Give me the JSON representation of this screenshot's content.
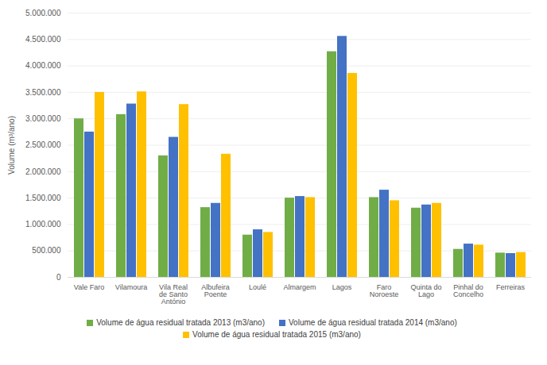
{
  "chart_data": {
    "type": "bar",
    "ylabel": "Volume (m³/ano)",
    "categories": [
      "Vale Faro",
      "Vilamoura",
      "Vila Real de Santo António",
      "Albufeira Poente",
      "Loulé",
      "Almargem",
      "Lagos",
      "Faro Noroeste",
      "Quinta do Lago",
      "Pinhal do Concelho",
      "Ferreiras"
    ],
    "series": [
      {
        "name": "Volume de água residual tratada 2013 (m3/ano)",
        "color": "#70ad47",
        "values": [
          3000000,
          3080000,
          2300000,
          1320000,
          800000,
          1500000,
          4270000,
          1510000,
          1310000,
          530000,
          460000
        ]
      },
      {
        "name": "Volume de água residual tratada 2014 (m3/ano)",
        "color": "#4472c4",
        "values": [
          2750000,
          3280000,
          2650000,
          1400000,
          900000,
          1530000,
          4560000,
          1650000,
          1370000,
          630000,
          450000
        ]
      },
      {
        "name": "Volume de água residual tratada 2015 (m3/ano)",
        "color": "#ffc000",
        "values": [
          3500000,
          3510000,
          3270000,
          2330000,
          850000,
          1510000,
          3860000,
          1450000,
          1400000,
          610000,
          470000
        ]
      }
    ],
    "ylim": [
      0,
      5000000
    ],
    "yticks": [
      0,
      {
        "value": 500000,
        "label": "500.000"
      },
      {
        "value": 1000000,
        "label": "1.000.000"
      },
      {
        "value": 1500000,
        "label": "1.500.000"
      },
      {
        "value": 2000000,
        "label": "2.000.000"
      },
      {
        "value": 2500000,
        "label": "2.500.000"
      },
      {
        "value": 3000000,
        "label": "3.000.000"
      },
      {
        "value": 3500000,
        "label": "3.500.000"
      },
      {
        "value": 4000000,
        "label": "4.000.000"
      },
      {
        "value": 4500000,
        "label": "4.500.000"
      },
      {
        "value": 5000000,
        "label": "5.000.000"
      }
    ],
    "grid": true,
    "legend": "bottom"
  }
}
